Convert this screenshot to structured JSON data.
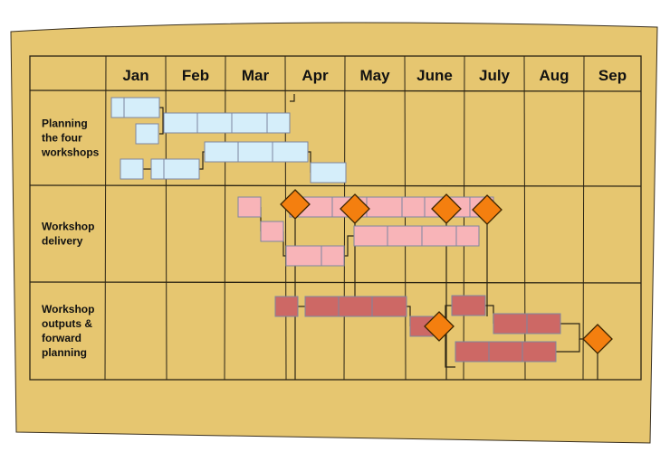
{
  "months": [
    "Jan",
    "Feb",
    "Mar",
    "Apr",
    "May",
    "June",
    "July",
    "Aug",
    "Sep"
  ],
  "rows": [
    {
      "label_lines": [
        "Planning",
        "the four",
        "workshops"
      ]
    },
    {
      "label_lines": [
        "Workshop",
        "delivery"
      ]
    },
    {
      "label_lines": [
        "Workshop",
        "outputs &",
        "forward",
        "planning"
      ]
    }
  ],
  "colors": {
    "paper": "#e6c670",
    "grid": "#2b2414",
    "planning": "#d5eefa",
    "delivery": "#f8b4b8",
    "outputs": "#cd6865",
    "milestone": "#f47f0f",
    "bar_stroke": "#7d86a0"
  }
}
